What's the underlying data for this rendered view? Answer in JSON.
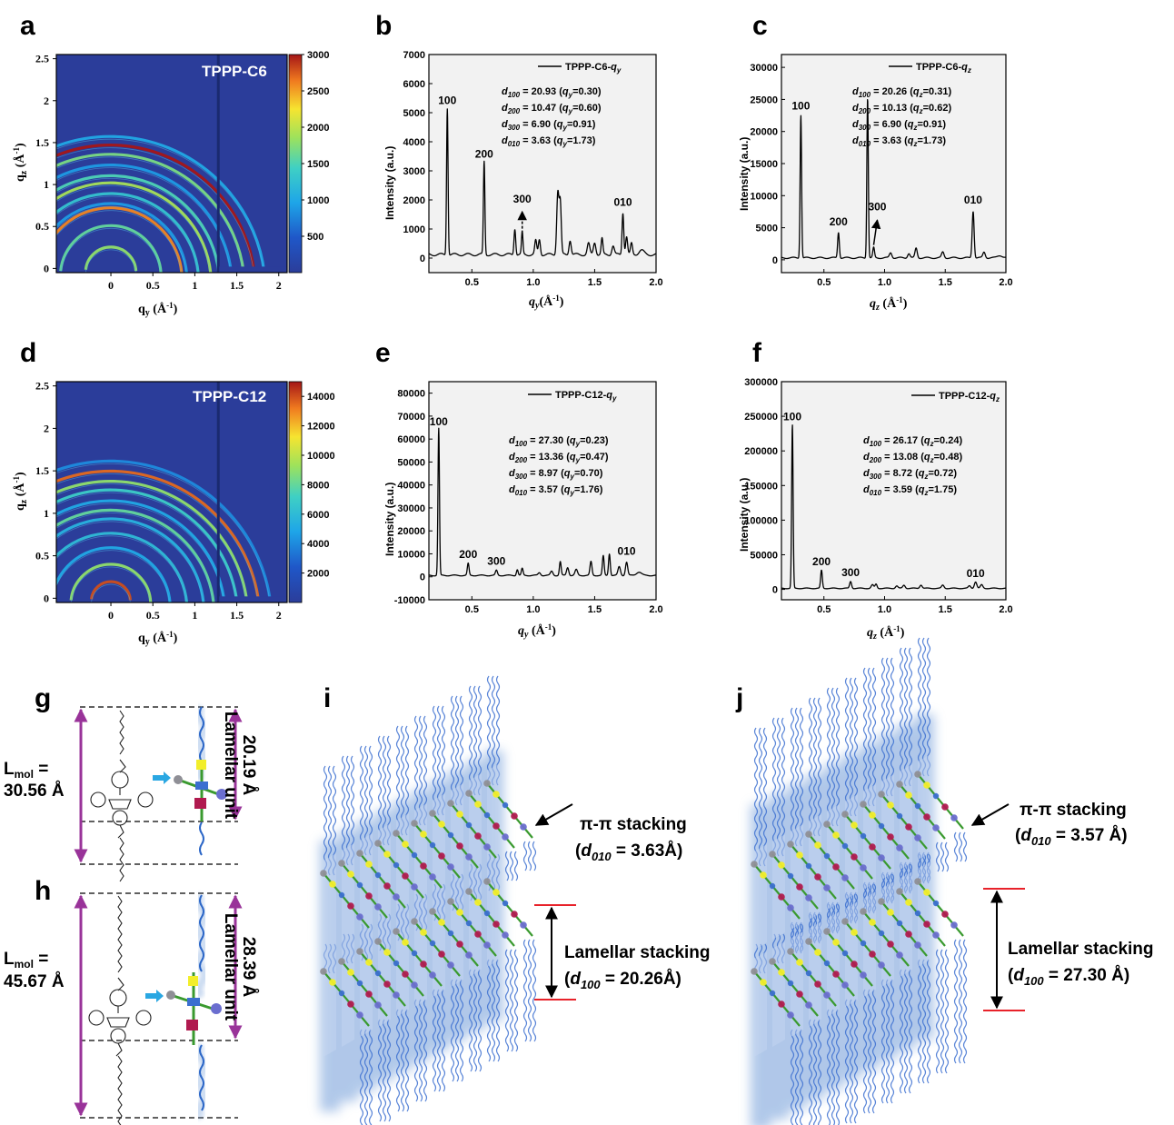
{
  "panel_labels": [
    "a",
    "b",
    "c",
    "d",
    "e",
    "f",
    "g",
    "h",
    "i",
    "j"
  ],
  "chart_data": [
    {
      "id": "a",
      "type": "heatmap",
      "inset_label": "TPPP-C6",
      "xlabel": "q_y (Å^-1)",
      "ylabel": "q_z (Å^-1)",
      "xlim": [
        -0.65,
        2.1
      ],
      "ylim": [
        -0.05,
        2.55
      ],
      "xticks": [
        "0",
        "0.5",
        "1",
        "1.5",
        "2"
      ],
      "xtick_values": [
        0,
        0.5,
        1,
        1.5,
        2
      ],
      "yticks": [
        "0",
        "0.5",
        "1",
        "1.5",
        "2",
        "2.5"
      ],
      "ytick_values": [
        0,
        0.5,
        1,
        1.5,
        2,
        2.5
      ],
      "colorbar_ticks": [
        "500",
        "1000",
        "1500",
        "2000",
        "2500",
        "3000"
      ],
      "colorbar_values": [
        500,
        1000,
        1500,
        2000,
        2500,
        3000
      ],
      "colorbar_range": [
        0,
        3000
      ],
      "rings": [
        {
          "q": 0.3,
          "level": 1800
        },
        {
          "q": 0.6,
          "level": 1600
        },
        {
          "q": 0.85,
          "level": 2600
        },
        {
          "q": 0.91,
          "level": 900
        },
        {
          "q": 1.05,
          "level": 1300
        },
        {
          "q": 1.2,
          "level": 1900
        },
        {
          "q": 1.3,
          "level": 1500
        },
        {
          "q": 1.45,
          "level": 900
        },
        {
          "q": 1.6,
          "level": 1700
        },
        {
          "q": 1.73,
          "level": 3000
        },
        {
          "q": 1.85,
          "level": 1000
        }
      ]
    },
    {
      "id": "b",
      "type": "line",
      "legend": "TPPP-C6-q_y",
      "xlabel": "q_y(Å^-1)",
      "ylabel": "Intensity (a.u.)",
      "xlim": [
        0.15,
        2.0
      ],
      "ylim": [
        -500,
        7000
      ],
      "xticks": [
        "0.5",
        "1.0",
        "1.5",
        "2.0"
      ],
      "xtick_values": [
        0.5,
        1.0,
        1.5,
        2.0
      ],
      "yticks": [
        "0",
        "1000",
        "2000",
        "3000",
        "4000",
        "5000",
        "6000",
        "7000"
      ],
      "ytick_values": [
        0,
        1000,
        2000,
        3000,
        4000,
        5000,
        6000,
        7000
      ],
      "baseline": 120,
      "peaks": [
        [
          0.3,
          5050,
          0.006
        ],
        [
          0.6,
          3200,
          0.006
        ],
        [
          0.85,
          900,
          0.007
        ],
        [
          0.91,
          760,
          0.006
        ],
        [
          1.02,
          480,
          0.008
        ],
        [
          1.05,
          520,
          0.008
        ],
        [
          1.2,
          2150,
          0.009
        ],
        [
          1.22,
          1750,
          0.008
        ],
        [
          1.3,
          500,
          0.009
        ],
        [
          1.45,
          380,
          0.01
        ],
        [
          1.5,
          420,
          0.01
        ],
        [
          1.56,
          550,
          0.007
        ],
        [
          1.65,
          300,
          0.01
        ],
        [
          1.73,
          1450,
          0.007
        ],
        [
          1.76,
          620,
          0.008
        ],
        [
          1.8,
          380,
          0.008
        ],
        [
          1.88,
          150,
          0.02
        ]
      ],
      "peak_labels": [
        [
          "100",
          0.3,
          5300
        ],
        [
          "200",
          0.6,
          3450
        ],
        [
          "300",
          0.91,
          1900
        ],
        [
          "010",
          1.73,
          1800
        ]
      ],
      "d_spacings": [
        {
          "label": "d",
          "sub": "100",
          "text": " = 20.93 (",
          "q": "q",
          "qsub": "y",
          "val": "=0.30)"
        },
        {
          "label": "d",
          "sub": "200",
          "text": " = 10.47 (",
          "q": "q",
          "qsub": "y",
          "val": "=0.60)"
        },
        {
          "label": "d",
          "sub": "300",
          "text": " = 6.90 (",
          "q": "q",
          "qsub": "y",
          "val": "=0.91)"
        },
        {
          "label": "d",
          "sub": "010",
          "text": " = 3.63 (",
          "q": "q",
          "qsub": "y",
          "val": "=1.73)"
        }
      ]
    },
    {
      "id": "c",
      "type": "line",
      "legend": "TPPP-C6-q_z",
      "xlabel": "q_z (Å^-1)",
      "ylabel": "Intensity (a.u.)",
      "xlim": [
        0.15,
        2.0
      ],
      "ylim": [
        -2000,
        32000
      ],
      "xticks": [
        "0.5",
        "1.0",
        "1.5",
        "2.0"
      ],
      "xtick_values": [
        0.5,
        1.0,
        1.5,
        2.0
      ],
      "yticks": [
        "0",
        "5000",
        "10000",
        "15000",
        "20000",
        "25000",
        "30000"
      ],
      "ytick_values": [
        0,
        5000,
        10000,
        15000,
        20000,
        25000,
        30000
      ],
      "baseline": 300,
      "peaks": [
        [
          0.31,
          22300,
          0.006
        ],
        [
          0.62,
          4000,
          0.007
        ],
        [
          0.86,
          25000,
          0.006
        ],
        [
          0.91,
          1600,
          0.007
        ],
        [
          1.05,
          800,
          0.01
        ],
        [
          1.2,
          700,
          0.01
        ],
        [
          1.26,
          1500,
          0.009
        ],
        [
          1.48,
          900,
          0.01
        ],
        [
          1.73,
          7300,
          0.008
        ],
        [
          1.82,
          900,
          0.01
        ],
        [
          1.95,
          400,
          0.02
        ]
      ],
      "peak_labels": [
        [
          "100",
          0.31,
          23400
        ],
        [
          "200",
          0.62,
          5400
        ],
        [
          "300",
          0.94,
          7700
        ],
        [
          "010",
          1.73,
          8800
        ]
      ],
      "d_spacings": [
        {
          "label": "d",
          "sub": "100",
          "text": " = 20.26 (",
          "q": "q",
          "qsub": "z",
          "val": "=0.31)"
        },
        {
          "label": "d",
          "sub": "200",
          "text": " = 10.13 (",
          "q": "q",
          "qsub": "z",
          "val": "=0.62)"
        },
        {
          "label": "d",
          "sub": "300",
          "text": " = 6.90 (",
          "q": "q",
          "qsub": "z",
          "val": "=0.91)"
        },
        {
          "label": "d",
          "sub": "010",
          "text": " = 3.63 (",
          "q": "q",
          "qsub": "z",
          "val": "=1.73)"
        }
      ]
    },
    {
      "id": "d",
      "type": "heatmap",
      "inset_label": "TPPP-C12",
      "xlabel": "q_y (Å^-1)",
      "ylabel": "q_z (Å^-1)",
      "xlim": [
        -0.65,
        2.1
      ],
      "ylim": [
        -0.05,
        2.55
      ],
      "xticks": [
        "0",
        "0.5",
        "1",
        "1.5",
        "2"
      ],
      "xtick_values": [
        0,
        0.5,
        1,
        1.5,
        2
      ],
      "yticks": [
        "0",
        "0.5",
        "1",
        "1.5",
        "2",
        "2.5"
      ],
      "ytick_values": [
        0,
        0.5,
        1,
        1.5,
        2,
        2.5
      ],
      "colorbar_ticks": [
        "2000",
        "4000",
        "6000",
        "8000",
        "10000",
        "12000",
        "14000"
      ],
      "colorbar_values": [
        2000,
        4000,
        6000,
        8000,
        10000,
        12000,
        14000
      ],
      "colorbar_range": [
        0,
        15000
      ],
      "rings": [
        {
          "q": 0.23,
          "level": 14000
        },
        {
          "q": 0.47,
          "level": 9000
        },
        {
          "q": 0.7,
          "level": 5000
        },
        {
          "q": 0.9,
          "level": 6000
        },
        {
          "q": 1.1,
          "level": 5500
        },
        {
          "q": 1.22,
          "level": 8000
        },
        {
          "q": 1.35,
          "level": 5000
        },
        {
          "q": 1.5,
          "level": 7000
        },
        {
          "q": 1.62,
          "level": 9000
        },
        {
          "q": 1.76,
          "level": 13500
        },
        {
          "q": 1.9,
          "level": 4000
        }
      ]
    },
    {
      "id": "e",
      "type": "line",
      "legend": "TPPP-C12-q_y",
      "xlabel": "q_y (Å^-1)",
      "ylabel": "Intensity (a.u.)",
      "xlim": [
        0.15,
        2.0
      ],
      "ylim": [
        -10000,
        85000
      ],
      "xticks": [
        "0.5",
        "1.0",
        "1.5",
        "2.0"
      ],
      "xtick_values": [
        0.5,
        1.0,
        1.5,
        2.0
      ],
      "yticks": [
        "-10000",
        "0",
        "10000",
        "20000",
        "30000",
        "40000",
        "50000",
        "60000",
        "70000",
        "80000"
      ],
      "ytick_values": [
        -10000,
        0,
        10000,
        20000,
        30000,
        40000,
        50000,
        60000,
        70000,
        80000
      ],
      "baseline": 600,
      "peaks": [
        [
          0.23,
          64000,
          0.006
        ],
        [
          0.47,
          5200,
          0.007
        ],
        [
          0.7,
          2200,
          0.008
        ],
        [
          0.87,
          2600,
          0.007
        ],
        [
          0.91,
          3000,
          0.007
        ],
        [
          1.05,
          1200,
          0.01
        ],
        [
          1.15,
          1800,
          0.01
        ],
        [
          1.22,
          6000,
          0.007
        ],
        [
          1.28,
          3500,
          0.009
        ],
        [
          1.35,
          2500,
          0.01
        ],
        [
          1.47,
          6000,
          0.008
        ],
        [
          1.57,
          8500,
          0.007
        ],
        [
          1.62,
          9500,
          0.007
        ],
        [
          1.7,
          3800,
          0.01
        ],
        [
          1.76,
          5800,
          0.009
        ],
        [
          1.86,
          1500,
          0.02
        ]
      ],
      "peak_labels": [
        [
          "100",
          0.23,
          66000
        ],
        [
          "200",
          0.47,
          8200
        ],
        [
          "300",
          0.7,
          5200
        ],
        [
          "010",
          1.76,
          9500
        ]
      ],
      "d_spacings": [
        {
          "label": "d",
          "sub": "100",
          "text": " = 27.30 (",
          "q": "q",
          "qsub": "y",
          "val": "=0.23)"
        },
        {
          "label": "d",
          "sub": "200",
          "text": " = 13.36 (",
          "q": "q",
          "qsub": "y",
          "val": "=0.47)"
        },
        {
          "label": "d",
          "sub": "300",
          "text": " = 8.97 (",
          "q": "q",
          "qsub": "y",
          "val": "=0.70)"
        },
        {
          "label": "d",
          "sub": "010",
          "text": " = 3.57 (",
          "q": "q",
          "qsub": "y",
          "val": "=1.76)"
        }
      ]
    },
    {
      "id": "f",
      "type": "line",
      "legend": "TPPP-C12-q_z",
      "xlabel": "q_z (Å^-1)",
      "ylabel": "Intensity (a.u.)",
      "xlim": [
        0.15,
        2.0
      ],
      "ylim": [
        -15000,
        300000
      ],
      "xticks": [
        "0.5",
        "1.0",
        "1.5",
        "2.0"
      ],
      "xtick_values": [
        0.5,
        1.0,
        1.5,
        2.0
      ],
      "yticks": [
        "0",
        "50000",
        "100000",
        "150000",
        "200000",
        "250000",
        "300000"
      ],
      "ytick_values": [
        0,
        50000,
        100000,
        150000,
        200000,
        250000,
        300000
      ],
      "baseline": 1500,
      "peaks": [
        [
          0.24,
          236000,
          0.006
        ],
        [
          0.48,
          26000,
          0.007
        ],
        [
          0.72,
          10000,
          0.008
        ],
        [
          0.9,
          5000,
          0.01
        ],
        [
          0.93,
          6000,
          0.008
        ],
        [
          1.1,
          3500,
          0.01
        ],
        [
          1.16,
          4500,
          0.01
        ],
        [
          1.3,
          5000,
          0.01
        ],
        [
          1.48,
          4500,
          0.01
        ],
        [
          1.7,
          3500,
          0.01
        ],
        [
          1.75,
          9500,
          0.01
        ],
        [
          1.8,
          5000,
          0.01
        ]
      ],
      "peak_labels": [
        [
          "100",
          0.24,
          244000
        ],
        [
          "200",
          0.48,
          35000
        ],
        [
          "300",
          0.72,
          19000
        ],
        [
          "010",
          1.75,
          18000
        ]
      ],
      "d_spacings": [
        {
          "label": "d",
          "sub": "100",
          "text": " = 26.17 (",
          "q": "q",
          "qsub": "z",
          "val": "=0.24)"
        },
        {
          "label": "d",
          "sub": "200",
          "text": " = 13.08 (",
          "q": "q",
          "qsub": "z",
          "val": "=0.48)"
        },
        {
          "label": "d",
          "sub": "300",
          "text": " = 8.72 (",
          "q": "q",
          "qsub": "z",
          "val": "=0.72)"
        },
        {
          "label": "d",
          "sub": "010",
          "text": " = 3.59 (",
          "q": "q",
          "qsub": "z",
          "val": "=1.75)"
        }
      ]
    }
  ],
  "molecules": {
    "g": {
      "lmol_label": "L",
      "lmol_sub": "mol",
      "lmol_eq": " =",
      "lmol_value": "30.56 Å",
      "unit_value": "20.19 Å",
      "unit_label": "Lamellar unit"
    },
    "h": {
      "lmol_label": "L",
      "lmol_sub": "mol",
      "lmol_eq": " =",
      "lmol_value": "45.67 Å",
      "unit_value": "28.39 Å",
      "unit_label": "Lamellar unit"
    }
  },
  "packing": {
    "i": {
      "pi_label": "π-π stacking",
      "pi_d": "d",
      "pi_sub": "010",
      "pi_value": " = 3.63Å)",
      "lam_label": "Lamellar stacking",
      "lam_d": "d",
      "lam_sub": "100",
      "lam_value": " = 20.26Å)"
    },
    "j": {
      "pi_label": "π-π stacking",
      "pi_d": "d",
      "pi_sub": "010",
      "pi_value": " = 3.57 Å)",
      "lam_label": "Lamellar stacking",
      "lam_d": "d",
      "lam_sub": "100",
      "lam_value": " = 27.30 Å)"
    }
  },
  "colors": {
    "text": "#000000",
    "purple": "#993399",
    "red": "#e8222a",
    "blue_bg": "#2b3d9a",
    "glow": "#6f9bd8",
    "yellow": "#f2ee2a",
    "crimson": "#b01a4f",
    "gray": "#8f8f96",
    "hexblue": "#6a6ecf",
    "arrow_cyan": "#2aa7e2"
  }
}
